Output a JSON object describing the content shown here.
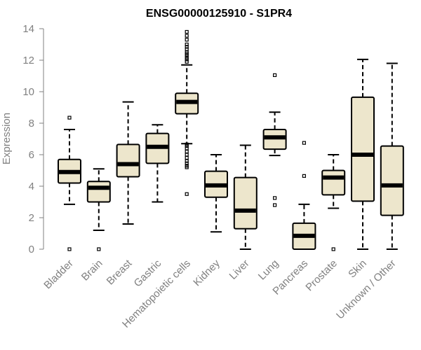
{
  "chart_data": {
    "type": "boxplot",
    "title": "ENSG00000125910 - S1PR4",
    "xlabel": "",
    "ylabel": "Expression",
    "ylim": [
      0,
      14
    ],
    "yticks": [
      0,
      2,
      4,
      6,
      8,
      10,
      12,
      14
    ],
    "grid": false,
    "legend": "none",
    "colors": {
      "box_fill": "#ede6cc",
      "stroke": "#000000",
      "axis_text": "#808080"
    },
    "categories": [
      "Bladder",
      "Brain",
      "Breast",
      "Gastric",
      "Hematopoietic cells",
      "Kidney",
      "Liver",
      "Lung",
      "Pancreas",
      "Prostate",
      "Skin",
      "Unknown / Other"
    ],
    "boxes": [
      {
        "category": "Bladder",
        "min": 2.85,
        "q1": 4.2,
        "median": 4.9,
        "q3": 5.7,
        "max": 7.6,
        "outliers": [
          0,
          8.35
        ]
      },
      {
        "category": "Brain",
        "min": 1.2,
        "q1": 3.0,
        "median": 3.9,
        "q3": 4.3,
        "max": 5.1,
        "outliers": [
          0
        ]
      },
      {
        "category": "Breast",
        "min": 1.6,
        "q1": 4.6,
        "median": 5.4,
        "q3": 6.65,
        "max": 9.35,
        "outliers": []
      },
      {
        "category": "Gastric",
        "min": 3.0,
        "q1": 5.45,
        "median": 6.5,
        "q3": 7.35,
        "max": 7.9,
        "outliers": []
      },
      {
        "category": "Hematopoietic cells",
        "min": 6.7,
        "q1": 8.6,
        "median": 9.35,
        "q3": 9.9,
        "max": 11.7,
        "outliers": [
          3.5,
          5.2,
          5.3,
          5.45,
          5.6,
          5.8,
          6.0,
          6.2,
          6.4,
          6.55,
          6.65,
          11.9,
          12.05,
          12.15,
          12.3,
          12.4,
          12.5,
          12.7,
          12.85,
          13.0,
          13.3,
          13.55,
          13.8
        ]
      },
      {
        "category": "Kidney",
        "min": 1.1,
        "q1": 3.3,
        "median": 4.05,
        "q3": 4.95,
        "max": 6.0,
        "outliers": []
      },
      {
        "category": "Liver",
        "min": 0,
        "q1": 1.3,
        "median": 2.45,
        "q3": 4.55,
        "max": 6.6,
        "outliers": []
      },
      {
        "category": "Lung",
        "min": 5.95,
        "q1": 6.35,
        "median": 7.1,
        "q3": 7.6,
        "max": 8.7,
        "outliers": [
          2.8,
          3.25,
          11.05
        ]
      },
      {
        "category": "Pancreas",
        "min": 0,
        "q1": 0,
        "median": 0.85,
        "q3": 1.65,
        "max": 2.85,
        "outliers": [
          4.65,
          6.75
        ]
      },
      {
        "category": "Prostate",
        "min": 2.6,
        "q1": 3.45,
        "median": 4.55,
        "q3": 5.0,
        "max": 6.0,
        "outliers": [
          0
        ]
      },
      {
        "category": "Skin",
        "min": 0,
        "q1": 3.05,
        "median": 6.0,
        "q3": 9.65,
        "max": 12.05,
        "outliers": []
      },
      {
        "category": "Unknown / Other",
        "min": 0,
        "q1": 2.15,
        "median": 4.05,
        "q3": 6.55,
        "max": 11.8,
        "outliers": []
      }
    ]
  }
}
